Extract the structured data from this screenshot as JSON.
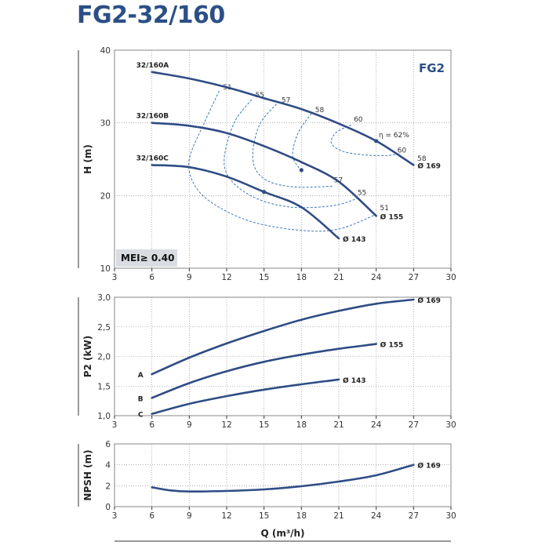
{
  "page": {
    "title": "FG2-32/160"
  },
  "chart_data": [
    {
      "type": "line",
      "id": "head",
      "ylabel": "H (m)",
      "xlim": [
        3,
        30
      ],
      "ylim": [
        10,
        40
      ],
      "xticks": [
        "3",
        "6",
        "9",
        "12",
        "15",
        "18",
        "21",
        "24",
        "27",
        "30"
      ],
      "yticks": [
        "10",
        "20",
        "30",
        "40"
      ],
      "badge": "FG2",
      "mei_label": "MEI≥ 0.40",
      "grid": true,
      "series": [
        {
          "name": "32/160A",
          "end_label": "Ø 169",
          "points": [
            [
              6,
              37
            ],
            [
              9,
              36.1
            ],
            [
              12,
              34.9
            ],
            [
              15,
              33.4
            ],
            [
              18,
              31.9
            ],
            [
              21,
              29.9
            ],
            [
              24,
              27.5
            ],
            [
              27,
              24.2
            ]
          ]
        },
        {
          "name": "32/160B",
          "end_label": "Ø 155",
          "points": [
            [
              6,
              30
            ],
            [
              9,
              29.6
            ],
            [
              12,
              28.6
            ],
            [
              15,
              26.8
            ],
            [
              18,
              24.6
            ],
            [
              21,
              21.9
            ],
            [
              24,
              17.2
            ]
          ]
        },
        {
          "name": "32/160C",
          "end_label": "Ø 143",
          "points": [
            [
              6,
              24.2
            ],
            [
              9,
              23.9
            ],
            [
              12,
              22.6
            ],
            [
              15,
              20.5
            ],
            [
              18,
              18.4
            ],
            [
              21,
              14.1
            ]
          ]
        }
      ],
      "bep_markers": [
        [
          24,
          27.5
        ],
        [
          18,
          23.5
        ],
        [
          15,
          20.5
        ]
      ],
      "efficiency_contours": [
        {
          "label": "51",
          "label_pos": [
            11.7,
            34.6
          ],
          "label_end": "51",
          "label_end_pos": [
            24.3,
            18.0
          ],
          "points": [
            [
              11.4,
              34.4
            ],
            [
              10.2,
              30
            ],
            [
              9.0,
              25
            ],
            [
              9.4,
              21.5
            ],
            [
              11.0,
              18.8
            ],
            [
              14.0,
              16.4
            ],
            [
              18.0,
              15.2
            ],
            [
              21.0,
              15.4
            ],
            [
              24.0,
              17.4
            ]
          ]
        },
        {
          "label": "55",
          "label_pos": [
            14.3,
            33.5
          ],
          "label_end": "55",
          "label_end_pos": [
            22.5,
            20.1
          ],
          "points": [
            [
              14.0,
              33.2
            ],
            [
              12.6,
              30
            ],
            [
              11.8,
              25
            ],
            [
              12.4,
              22
            ],
            [
              14.4,
              19.6
            ],
            [
              17.2,
              18.4
            ],
            [
              20.5,
              18.6
            ],
            [
              22.5,
              19.6
            ]
          ]
        },
        {
          "label": "57",
          "label_pos": [
            16.4,
            32.8
          ],
          "label_end": "57",
          "label_end_pos": [
            20.6,
            21.8
          ],
          "points": [
            [
              16.0,
              32.6
            ],
            [
              14.6,
              29.6
            ],
            [
              14.1,
              25
            ],
            [
              15.0,
              22.3
            ],
            [
              17.3,
              21.2
            ],
            [
              20.6,
              21.3
            ]
          ]
        },
        {
          "label": "58",
          "label_pos": [
            19.1,
            31.5
          ],
          "label_end": "58",
          "label_end_pos": [
            27.3,
            24.8
          ],
          "points": [
            [
              18.8,
              31.3
            ],
            [
              17.7,
              28.5
            ],
            [
              17.3,
              25.5
            ],
            [
              17.8,
              23.8
            ]
          ]
        },
        {
          "label": "60",
          "label_pos": [
            22.2,
            30.2
          ],
          "label_end": "60",
          "label_end_pos": [
            25.7,
            25.9
          ],
          "points": [
            [
              22.0,
              29.7
            ],
            [
              20.8,
              28.7
            ],
            [
              20.4,
              27.2
            ],
            [
              21.3,
              26.1
            ],
            [
              23.0,
              25.6
            ],
            [
              24.8,
              25.5
            ],
            [
              26.0,
              25.8
            ]
          ]
        }
      ],
      "eta_label": "η = 62%"
    },
    {
      "type": "line",
      "id": "power",
      "ylabel": "P2 (kW)",
      "xlim": [
        3,
        30
      ],
      "ylim": [
        1.0,
        3.0
      ],
      "xticks": [
        "3",
        "6",
        "9",
        "12",
        "15",
        "18",
        "21",
        "24",
        "27",
        "30"
      ],
      "yticks": [
        "1,0",
        "1,5",
        "2,0",
        "2,5",
        "3,0"
      ],
      "grid": true,
      "series": [
        {
          "name": "A",
          "end_label": "Ø 169",
          "points": [
            [
              6,
              1.7
            ],
            [
              9,
              1.98
            ],
            [
              12,
              2.22
            ],
            [
              15,
              2.43
            ],
            [
              18,
              2.62
            ],
            [
              21,
              2.77
            ],
            [
              24,
              2.89
            ],
            [
              27,
              2.96
            ]
          ]
        },
        {
          "name": "B",
          "end_label": "Ø 155",
          "points": [
            [
              6,
              1.3
            ],
            [
              9,
              1.55
            ],
            [
              12,
              1.75
            ],
            [
              15,
              1.91
            ],
            [
              18,
              2.03
            ],
            [
              21,
              2.13
            ],
            [
              24,
              2.21
            ]
          ]
        },
        {
          "name": "C",
          "end_label": "Ø 143",
          "points": [
            [
              6,
              1.03
            ],
            [
              9,
              1.2
            ],
            [
              12,
              1.33
            ],
            [
              15,
              1.44
            ],
            [
              18,
              1.53
            ],
            [
              21,
              1.61
            ]
          ]
        }
      ]
    },
    {
      "type": "line",
      "id": "npsh",
      "ylabel": "NPSH (m)",
      "xlabel": "Q (m³/h)",
      "xlim": [
        3,
        30
      ],
      "ylim": [
        0,
        6
      ],
      "xticks": [
        "3",
        "6",
        "9",
        "12",
        "15",
        "18",
        "21",
        "24",
        "27",
        "30"
      ],
      "yticks": [
        "0",
        "2",
        "4",
        "6"
      ],
      "grid": true,
      "series": [
        {
          "name": "",
          "end_label": "Ø 169",
          "points": [
            [
              6,
              1.85
            ],
            [
              7.5,
              1.55
            ],
            [
              9,
              1.45
            ],
            [
              12,
              1.5
            ],
            [
              15,
              1.65
            ],
            [
              18,
              1.95
            ],
            [
              21,
              2.4
            ],
            [
              24,
              3.0
            ],
            [
              27,
              4.0
            ]
          ]
        }
      ]
    }
  ]
}
